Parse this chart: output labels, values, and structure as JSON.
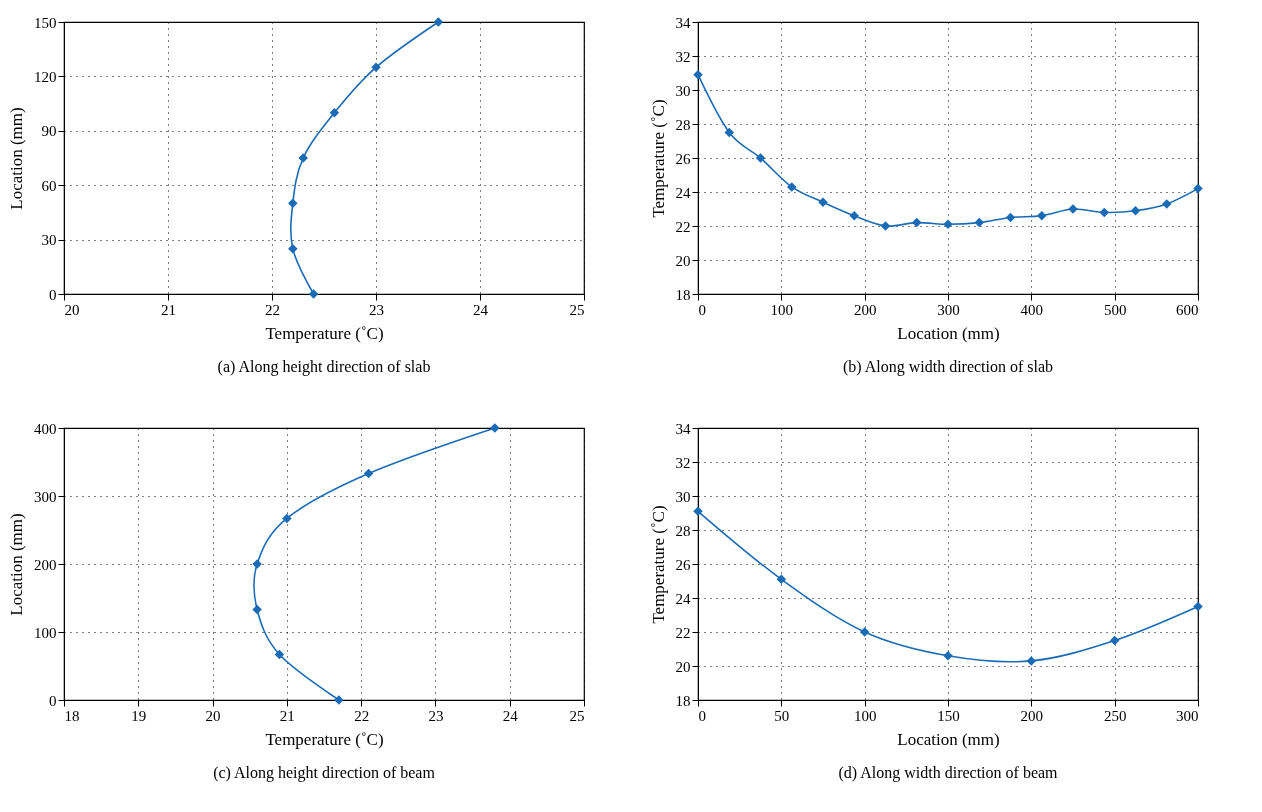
{
  "chart_data": [
    {
      "type": "line",
      "title": "(a)  Along height direction of slab",
      "xlabel": "Temperature (˚C)",
      "ylabel": "Location (mm)",
      "xlim": [
        20,
        25
      ],
      "xticks": [
        20,
        21,
        22,
        23,
        24,
        25
      ],
      "ylim": [
        0,
        150
      ],
      "yticks": [
        0,
        30,
        60,
        90,
        120,
        150
      ],
      "grid": true,
      "marker": "diamond",
      "line_style": "solid",
      "x": [
        22.4,
        22.2,
        22.2,
        22.3,
        22.6,
        23.0,
        23.6
      ],
      "series": [
        {
          "color": "#1a6bb5",
          "values": [
            0,
            25,
            50,
            75,
            100,
            125,
            150
          ]
        }
      ]
    },
    {
      "type": "line",
      "title": "(b)  Along width direction of slab",
      "xlabel": "Location (mm)",
      "ylabel": "Temperature (˚C)",
      "xlim": [
        0,
        600
      ],
      "xticks": [
        0,
        100,
        200,
        300,
        400,
        500,
        600
      ],
      "ylim": [
        18,
        34
      ],
      "yticks": [
        18,
        20,
        22,
        24,
        26,
        28,
        30,
        32,
        34
      ],
      "grid": true,
      "marker": "diamond",
      "line_style": "solid",
      "x": [
        0,
        37.5,
        75,
        112.5,
        150,
        187.5,
        225,
        262.5,
        300,
        337.5,
        375,
        412.5,
        450,
        487.5,
        525,
        562.5,
        600
      ],
      "series": [
        {
          "color": "#1a6bb5",
          "values": [
            30.9,
            27.5,
            26.0,
            24.3,
            23.4,
            22.6,
            22.0,
            22.2,
            22.1,
            22.2,
            22.5,
            22.6,
            23.0,
            22.8,
            22.9,
            23.3,
            24.2
          ]
        }
      ]
    },
    {
      "type": "line",
      "title": "(c)  Along height direction of beam",
      "xlabel": "Temperature (˚C)",
      "ylabel": "Location (mm)",
      "xlim": [
        18,
        25
      ],
      "xticks": [
        18,
        19,
        20,
        21,
        22,
        23,
        24,
        25
      ],
      "ylim": [
        0,
        400
      ],
      "yticks": [
        0,
        100,
        200,
        300,
        400
      ],
      "grid": true,
      "marker": "diamond",
      "line_style": "solid",
      "x": [
        21.7,
        20.9,
        20.6,
        20.6,
        21.0,
        22.1,
        23.8
      ],
      "series": [
        {
          "color": "#1a6bb5",
          "values": [
            0,
            67,
            133,
            200,
            267,
            333,
            400
          ]
        }
      ]
    },
    {
      "type": "line",
      "title": "(d)  Along width direction of beam",
      "xlabel": "Location (mm)",
      "ylabel": "Temperature (˚C)",
      "xlim": [
        0,
        300
      ],
      "xticks": [
        0,
        50,
        100,
        150,
        200,
        250,
        300
      ],
      "ylim": [
        18,
        34
      ],
      "yticks": [
        18,
        20,
        22,
        24,
        26,
        28,
        30,
        32,
        34
      ],
      "grid": true,
      "marker": "diamond",
      "line_style": "solid",
      "x": [
        0,
        50,
        100,
        150,
        200,
        250,
        300
      ],
      "series": [
        {
          "color": "#1a6bb5",
          "values": [
            29.1,
            25.1,
            22.0,
            20.6,
            20.3,
            21.5,
            23.5
          ]
        }
      ]
    }
  ]
}
